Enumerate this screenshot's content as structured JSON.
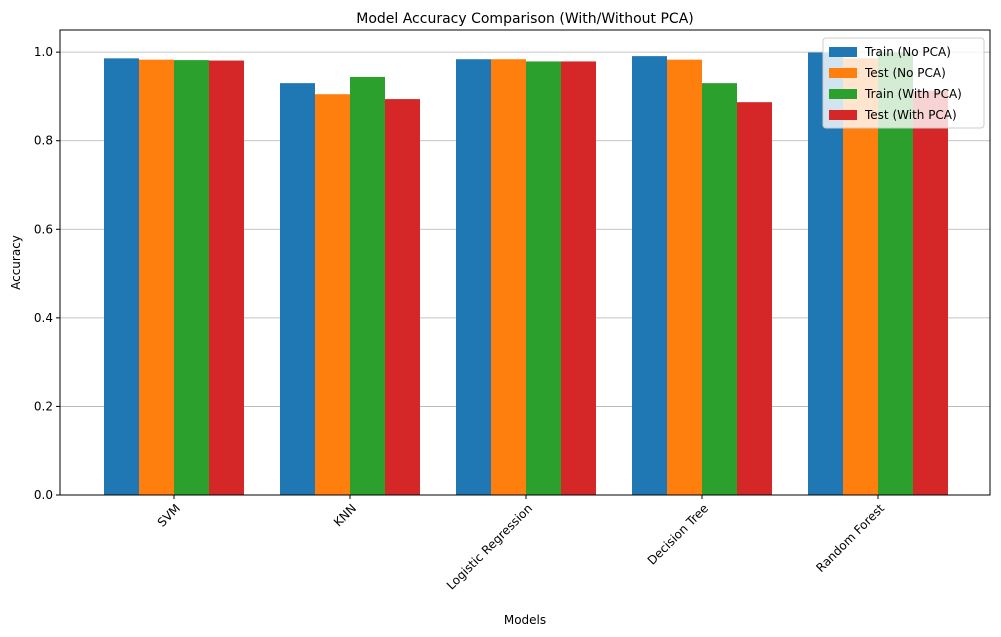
{
  "chart_data": {
    "type": "bar",
    "title": "Model Accuracy Comparison (With/Without PCA)",
    "xlabel": "Models",
    "ylabel": "Accuracy",
    "categories": [
      "SVM",
      "KNN",
      "Logistic Regression",
      "Decision Tree",
      "Random Forest"
    ],
    "series": [
      {
        "name": "Train (No PCA)",
        "color": "#1f77b4",
        "values": [
          0.986,
          0.93,
          0.984,
          0.991,
          0.999
        ]
      },
      {
        "name": "Test (No PCA)",
        "color": "#ff7f0e",
        "values": [
          0.983,
          0.905,
          0.984,
          0.983,
          0.986
        ]
      },
      {
        "name": "Train (With PCA)",
        "color": "#2ca02c",
        "values": [
          0.982,
          0.944,
          0.979,
          0.93,
          0.999
        ]
      },
      {
        "name": "Test (With PCA)",
        "color": "#d62728",
        "values": [
          0.981,
          0.894,
          0.979,
          0.887,
          0.913
        ]
      }
    ],
    "ylim": [
      0,
      1.05
    ],
    "yticks": [
      "0.0",
      "0.2",
      "0.4",
      "0.6",
      "0.8",
      "1.0"
    ],
    "grid": "y-axis",
    "legend_position": "top-right"
  }
}
